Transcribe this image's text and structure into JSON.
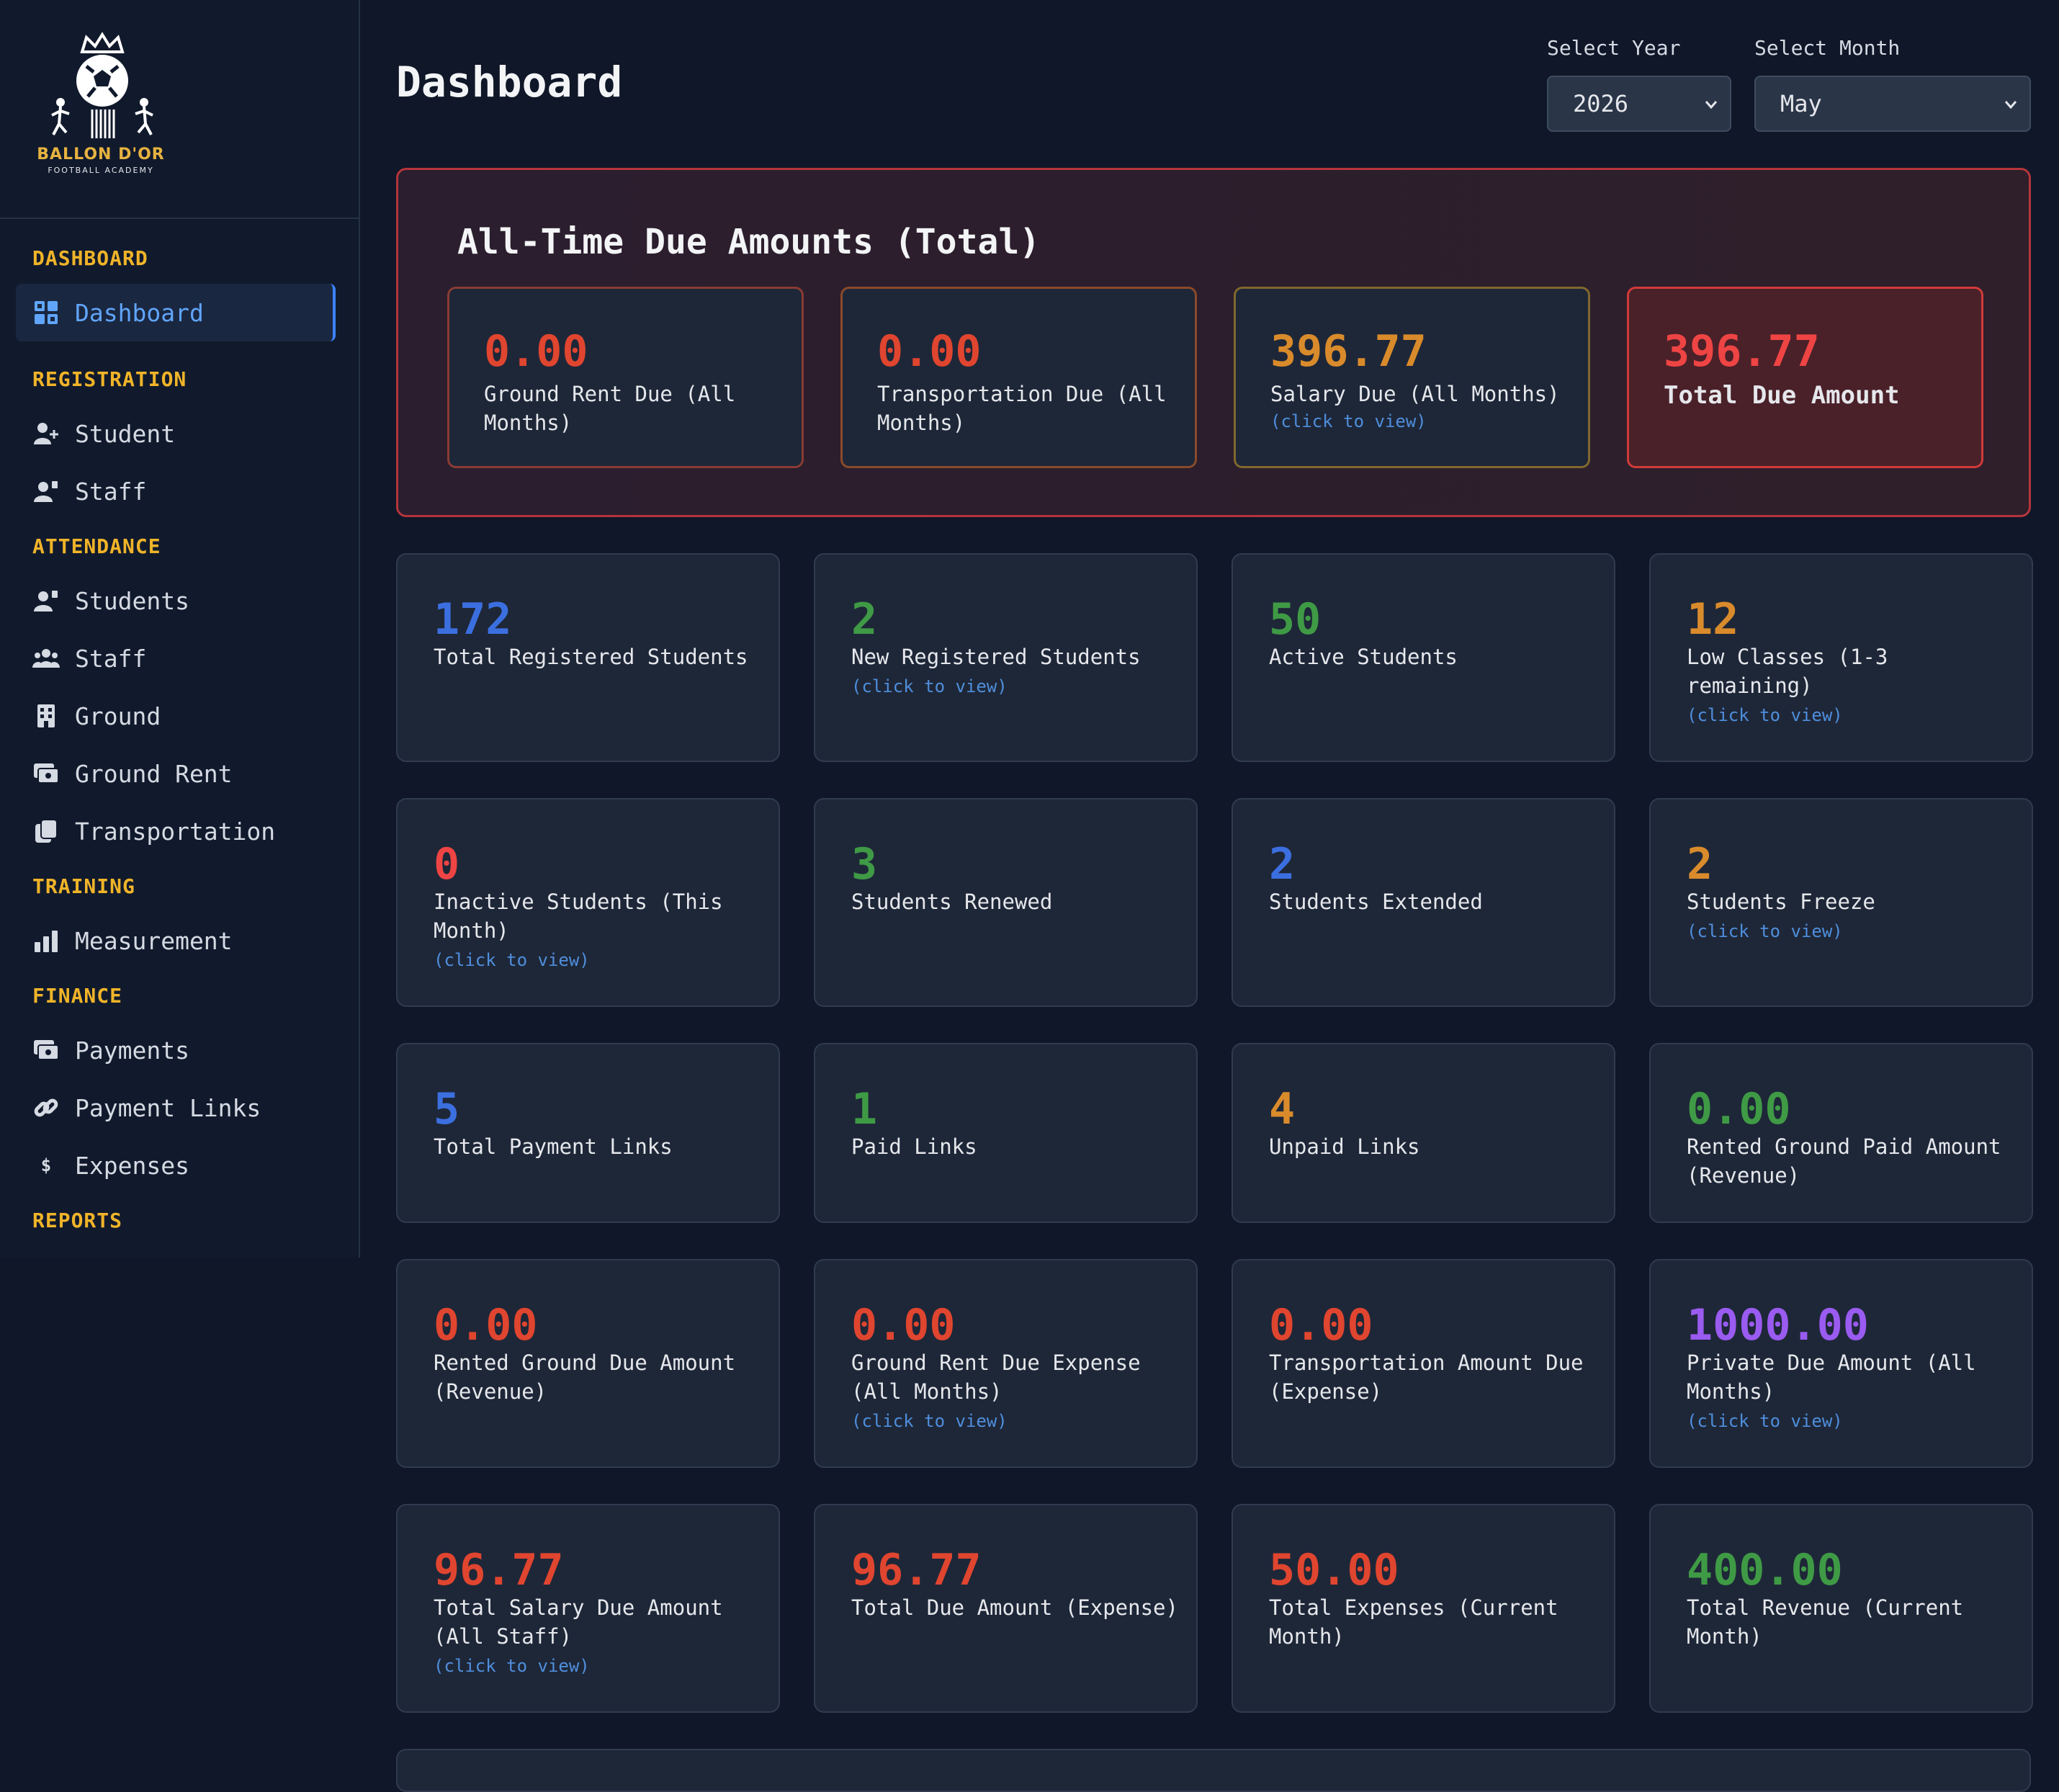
{
  "brand": {
    "name": "BALLON D'OR",
    "sub": "FOOTBALL ACADEMY"
  },
  "sidebar": {
    "sections": [
      {
        "label": "DASHBOARD",
        "items": [
          {
            "label": "Dashboard",
            "icon": "grid-icon"
          }
        ]
      },
      {
        "label": "REGISTRATION",
        "items": [
          {
            "label": "Student",
            "icon": "user-plus-icon"
          },
          {
            "label": "Staff",
            "icon": "staff-icon"
          }
        ]
      },
      {
        "label": "ATTENDANCE",
        "items": [
          {
            "label": "Students",
            "icon": "students-icon"
          },
          {
            "label": "Staff",
            "icon": "users-icon"
          },
          {
            "label": "Ground",
            "icon": "building-icon"
          },
          {
            "label": "Ground Rent",
            "icon": "money-icon"
          },
          {
            "label": "Transportation",
            "icon": "copy-icon"
          }
        ]
      },
      {
        "label": "TRAINING",
        "items": [
          {
            "label": "Measurement",
            "icon": "chart-icon"
          }
        ]
      },
      {
        "label": "FINANCE",
        "items": [
          {
            "label": "Payments",
            "icon": "money-icon"
          },
          {
            "label": "Payment Links",
            "icon": "link-icon"
          },
          {
            "label": "Expenses",
            "icon": "dollar-icon"
          }
        ]
      },
      {
        "label": "REPORTS",
        "items": []
      }
    ]
  },
  "header": {
    "title": "Dashboard",
    "year_label": "Select Year",
    "year_value": "2026",
    "month_label": "Select Month",
    "month_value": "May"
  },
  "due_panel": {
    "title": "All-Time Due Amounts (Total)",
    "cards": [
      {
        "value": "0.00",
        "label": "Ground Rent Due (All Months)",
        "link": "",
        "color": "#e0452f"
      },
      {
        "value": "0.00",
        "label": "Transportation Due (All Months)",
        "link": "",
        "color": "#e0452f"
      },
      {
        "value": "396.77",
        "label": "Salary Due (All Months)",
        "link": "(click to view)",
        "color": "#d98b2b"
      },
      {
        "value": "396.77",
        "label": "Total Due Amount",
        "link": "",
        "color": "#ef4444"
      }
    ]
  },
  "stats": [
    {
      "value": "172",
      "label": "Total Registered Students",
      "link": "",
      "color": "blue"
    },
    {
      "value": "2",
      "label": "New Registered Students",
      "link": "(click to view)",
      "color": "green"
    },
    {
      "value": "50",
      "label": "Active Students",
      "link": "",
      "color": "green"
    },
    {
      "value": "12",
      "label": "Low Classes (1-3 remaining)",
      "link": "(click to view)",
      "color": "orange"
    },
    {
      "value": "0",
      "label": "Inactive Students (This Month)",
      "link": "(click to view)",
      "color": "tred"
    },
    {
      "value": "3",
      "label": "Students Renewed",
      "link": "",
      "color": "green"
    },
    {
      "value": "2",
      "label": "Students Extended",
      "link": "",
      "color": "blue"
    },
    {
      "value": "2",
      "label": "Students Freeze",
      "link": "(click to view)",
      "color": "orange"
    },
    {
      "value": "5",
      "label": "Total Payment Links",
      "link": "",
      "color": "blue"
    },
    {
      "value": "1",
      "label": "Paid Links",
      "link": "",
      "color": "green"
    },
    {
      "value": "4",
      "label": "Unpaid Links",
      "link": "",
      "color": "orange"
    },
    {
      "value": "0.00",
      "label": "Rented Ground Paid Amount (Revenue)",
      "link": "",
      "color": "green"
    },
    {
      "value": "0.00",
      "label": "Rented Ground Due Amount (Revenue)",
      "link": "",
      "color": "red"
    },
    {
      "value": "0.00",
      "label": "Ground Rent Due Expense (All Months)",
      "link": "(click to view)",
      "color": "red"
    },
    {
      "value": "0.00",
      "label": "Transportation Amount Due (Expense)",
      "link": "",
      "color": "red"
    },
    {
      "value": "1000.00",
      "label": "Private Due Amount (All Months)",
      "link": "(click to view)",
      "color": "purple"
    },
    {
      "value": "96.77",
      "label": "Total Salary Due Amount (All Staff)",
      "link": "(click to view)",
      "color": "red"
    },
    {
      "value": "96.77",
      "label": "Total Due Amount (Expense)",
      "link": "",
      "color": "red"
    },
    {
      "value": "50.00",
      "label": "Total Expenses (Current Month)",
      "link": "",
      "color": "red"
    },
    {
      "value": "400.00",
      "label": "Total Revenue (Current Month)",
      "link": "",
      "color": "green"
    }
  ]
}
